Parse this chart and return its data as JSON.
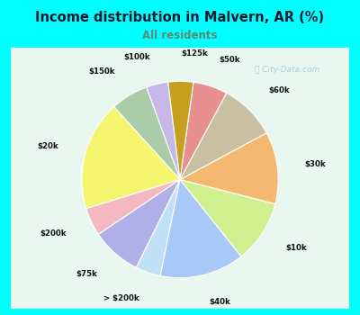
{
  "title": "Income distribution in Malvern, AR (%)",
  "subtitle": "All residents",
  "title_color": "#1a1a2e",
  "subtitle_color": "#5a8a7a",
  "background_outer": "#00ffff",
  "background_inner_top": "#e0f5f5",
  "background_inner_bottom": "#d8f0e0",
  "watermark": "ⓘ City-Data.com",
  "labels": [
    "$100k",
    "$150k",
    "$20k",
    "$200k",
    "$75k",
    "> $200k",
    "$40k",
    "$10k",
    "$30k",
    "$60k",
    "$50k",
    "$125k"
  ],
  "values": [
    3.5,
    6.0,
    17.5,
    4.5,
    8.0,
    4.0,
    13.5,
    10.0,
    11.5,
    9.0,
    5.5,
    4.0
  ],
  "colors": [
    "#c8b8e8",
    "#aacca8",
    "#f5f570",
    "#f5b8c0",
    "#b0b0e8",
    "#c0e0f8",
    "#a8c8f8",
    "#d0f090",
    "#f5b870",
    "#c8c0a0",
    "#e89090",
    "#c8a020"
  ],
  "startangle": 97,
  "label_distance": 1.28
}
